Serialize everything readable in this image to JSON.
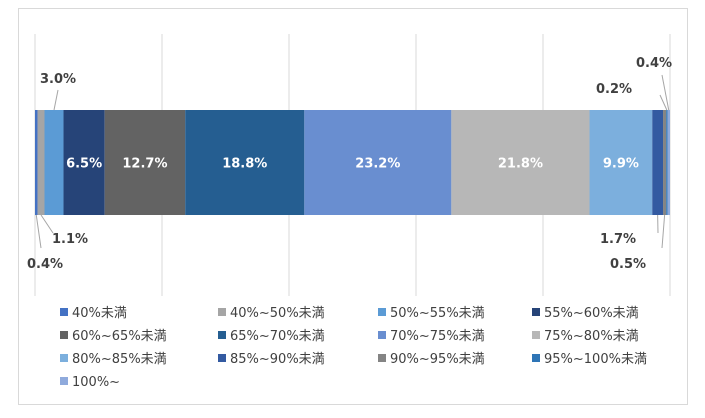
{
  "chart_data": {
    "type": "bar",
    "orientation": "horizontal",
    "stacked": true,
    "normalized_percent": true,
    "grid": true,
    "legend_position": "bottom",
    "categories": [
      ""
    ],
    "series": [
      {
        "name": "40%未満",
        "values": [
          0.4
        ],
        "label": "0.4%",
        "color": "#4472c4"
      },
      {
        "name": "40%~50%未満",
        "values": [
          1.1
        ],
        "label": "1.1%",
        "color": "#a5a5a5"
      },
      {
        "name": "50%~55%未満",
        "values": [
          3.0
        ],
        "label": "3.0%",
        "color": "#5b9bd5"
      },
      {
        "name": "55%~60%未満",
        "values": [
          6.5
        ],
        "label": "6.5%",
        "color": "#264478"
      },
      {
        "name": "60%~65%未満",
        "values": [
          12.7
        ],
        "label": "12.7%",
        "color": "#636363"
      },
      {
        "name": "65%~70%未満",
        "values": [
          18.8
        ],
        "label": "18.8%",
        "color": "#255e91"
      },
      {
        "name": "70%~75%未満",
        "values": [
          23.2
        ],
        "label": "23.2%",
        "color": "#698ed0"
      },
      {
        "name": "75%~80%未満",
        "values": [
          21.8
        ],
        "label": "21.8%",
        "color": "#b7b7b7"
      },
      {
        "name": "80%~85%未満",
        "values": [
          9.9
        ],
        "label": "9.9%",
        "color": "#7cafdd"
      },
      {
        "name": "85%~90%未満",
        "values": [
          1.7
        ],
        "label": "1.7%",
        "color": "#335aa1"
      },
      {
        "name": "90%~95%未満",
        "values": [
          0.5
        ],
        "label": "0.5%",
        "color": "#848484"
      },
      {
        "name": "95%~100%未満",
        "values": [
          0.2
        ],
        "label": "0.2%",
        "color": "#2e75b6"
      },
      {
        "name": "100%~",
        "values": [
          0.4
        ],
        "label": "0.4%",
        "color": "#8faadc"
      }
    ]
  }
}
